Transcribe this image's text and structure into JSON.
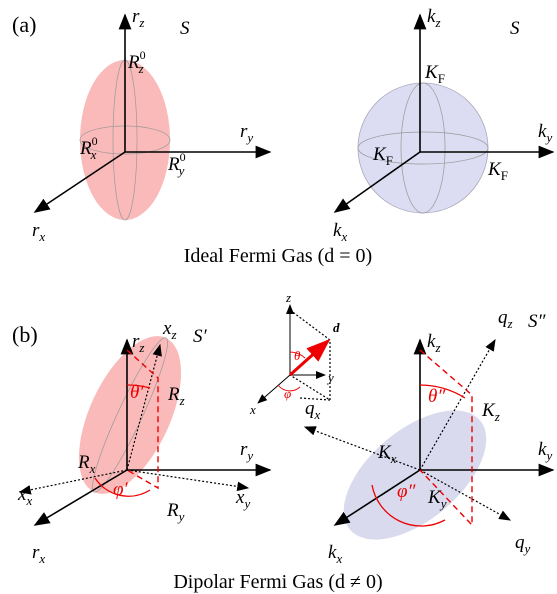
{
  "panel_a": {
    "tag": "(a)",
    "caption": "Ideal Fermi Gas (d = 0)",
    "labels": [
      {
        "main": "S"
      },
      {
        "main": "r",
        "sub": "z"
      },
      {
        "main": "R",
        "sub": "z",
        "sup": "0"
      },
      {
        "main": "r",
        "sub": "y"
      },
      {
        "main": "R",
        "sub": "x",
        "sup": "0"
      },
      {
        "main": "R",
        "sub": "y",
        "sup": "0"
      },
      {
        "main": "r",
        "sub": "x"
      },
      {
        "main": "S"
      },
      {
        "main": "k",
        "sub": "z"
      },
      {
        "main": "K",
        "sub": "F"
      },
      {
        "main": "k",
        "sub": "y"
      },
      {
        "main": "K",
        "sub": "F"
      },
      {
        "main": "K",
        "sub": "F"
      },
      {
        "main": "k",
        "sub": "x"
      }
    ]
  },
  "panel_b": {
    "tag": "(b)",
    "caption": "Dipolar Fermi Gas (d ≠ 0)",
    "labels": [
      {
        "main": "r",
        "sub": "z"
      },
      {
        "main": "x",
        "sub": "z"
      },
      {
        "main": "S′"
      },
      {
        "main": "R",
        "sub": "z"
      },
      {
        "main": "θ′"
      },
      {
        "main": "r",
        "sub": "y"
      },
      {
        "main": "R",
        "sub": "x"
      },
      {
        "main": "x",
        "sub": "x"
      },
      {
        "main": "φ′"
      },
      {
        "main": "R",
        "sub": "y"
      },
      {
        "main": "x",
        "sub": "y"
      },
      {
        "main": "r",
        "sub": "x"
      },
      {
        "main": "z"
      },
      {
        "main": "d"
      },
      {
        "main": "θ"
      },
      {
        "main": "y"
      },
      {
        "main": "φ"
      },
      {
        "main": "x"
      },
      {
        "main": "k",
        "sub": "z"
      },
      {
        "main": "q",
        "sub": "z"
      },
      {
        "main": "S″"
      },
      {
        "main": "θ″"
      },
      {
        "main": "K",
        "sub": "z"
      },
      {
        "main": "q",
        "sub": "x"
      },
      {
        "main": "K",
        "sub": "x"
      },
      {
        "main": "k",
        "sub": "y"
      },
      {
        "main": "φ″"
      },
      {
        "main": "K",
        "sub": "y"
      },
      {
        "main": "q",
        "sub": "y"
      },
      {
        "main": "k",
        "sub": "x"
      }
    ]
  }
}
